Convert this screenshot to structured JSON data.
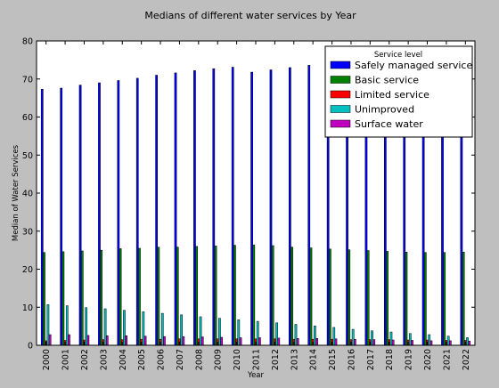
{
  "chart_data": {
    "type": "bar",
    "title": "Medians of different water services by Year",
    "xlabel": "Year",
    "ylabel": "Median of Water Services",
    "ylim": [
      0,
      80
    ],
    "yticks": [
      0,
      10,
      20,
      30,
      40,
      50,
      60,
      70,
      80
    ],
    "grid": false,
    "legend": {
      "title": "Service level",
      "placement": "top-right"
    },
    "categories": [
      "2000",
      "2001",
      "2002",
      "2003",
      "2004",
      "2005",
      "2006",
      "2007",
      "2008",
      "2009",
      "2010",
      "2011",
      "2012",
      "2013",
      "2014",
      "2015",
      "2016",
      "2017",
      "2018",
      "2019",
      "2020",
      "2021",
      "2022"
    ],
    "series": [
      {
        "name": "Safely managed service",
        "color": "#0000ff",
        "values": [
          67.3,
          67.6,
          68.4,
          69.0,
          69.6,
          70.2,
          71.0,
          71.6,
          72.2,
          72.7,
          73.1,
          71.8,
          72.4,
          73.0,
          73.6,
          73.0,
          74.0,
          74.5,
          75.0,
          75.5,
          76.0,
          76.5,
          77.0
        ]
      },
      {
        "name": "Basic service",
        "color": "#008000",
        "values": [
          24.4,
          24.6,
          24.8,
          25.0,
          25.4,
          25.5,
          25.8,
          25.8,
          26.0,
          26.1,
          26.3,
          26.4,
          26.2,
          25.8,
          25.6,
          25.3,
          25.1,
          24.9,
          24.7,
          24.5,
          24.4,
          24.4,
          24.5
        ]
      },
      {
        "name": "Limited service",
        "color": "#ff0000",
        "values": [
          1.2,
          1.3,
          1.4,
          1.5,
          1.5,
          1.6,
          1.6,
          1.7,
          1.7,
          1.7,
          1.7,
          1.7,
          1.7,
          1.6,
          1.6,
          1.6,
          1.5,
          1.5,
          1.5,
          1.4,
          1.4,
          1.3,
          1.3
        ]
      },
      {
        "name": "Unimproved",
        "color": "#00bfbf",
        "values": [
          10.7,
          10.4,
          9.9,
          9.6,
          9.2,
          8.8,
          8.4,
          8.0,
          7.5,
          7.1,
          6.7,
          6.3,
          5.9,
          5.5,
          5.1,
          4.7,
          4.2,
          3.8,
          3.5,
          3.1,
          2.8,
          2.4,
          2.0
        ]
      },
      {
        "name": "Surface water",
        "color": "#bf00bf",
        "values": [
          2.8,
          2.8,
          2.6,
          2.5,
          2.5,
          2.4,
          2.3,
          2.3,
          2.2,
          2.1,
          2.0,
          2.0,
          1.9,
          1.8,
          1.8,
          1.7,
          1.6,
          1.5,
          1.4,
          1.3,
          1.2,
          1.2,
          1.1
        ]
      }
    ]
  }
}
